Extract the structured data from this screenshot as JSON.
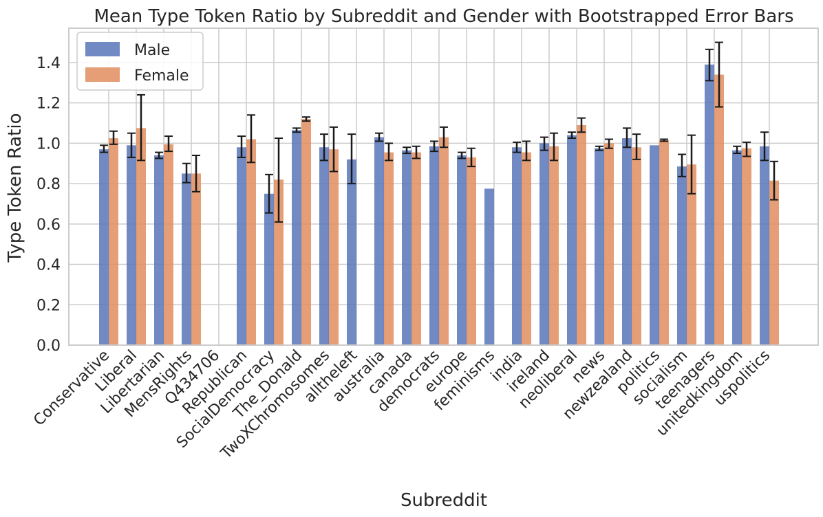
{
  "chart_data": {
    "type": "bar",
    "title": "Mean Type Token Ratio by Subreddit and Gender with Bootstrapped Error Bars",
    "xlabel": "Subreddit",
    "ylabel": "Type Token Ratio",
    "ylim": [
      0,
      1.57
    ],
    "yticks": [
      0.0,
      0.2,
      0.4,
      0.6,
      0.8,
      1.0,
      1.2,
      1.4
    ],
    "ytick_labels": [
      "0.0",
      "0.2",
      "0.4",
      "0.6",
      "0.8",
      "1.0",
      "1.2",
      "1.4"
    ],
    "grid": true,
    "legend_position": "top-left",
    "categories": [
      "Conservative",
      "Liberal",
      "Libertarian",
      "MensRights",
      "Q434706",
      "Republican",
      "SocialDemocracy",
      "The_Donald",
      "TwoXChromosomes",
      "alltheleft",
      "australia",
      "canada",
      "democrats",
      "europe",
      "feminisms",
      "india",
      "ireland",
      "neoliberal",
      "news",
      "newzealand",
      "politics",
      "socialism",
      "teenagers",
      "unitedkingdom",
      "uspolitics"
    ],
    "series": [
      {
        "name": "Male",
        "color": "#5875b8",
        "values": [
          0.97,
          0.99,
          0.94,
          0.85,
          null,
          0.98,
          0.75,
          1.065,
          0.98,
          0.92,
          1.03,
          0.965,
          0.985,
          0.94,
          0.775,
          0.98,
          1.0,
          1.04,
          0.975,
          1.025,
          0.99,
          0.885,
          1.39,
          0.965,
          0.985
        ],
        "error_low": [
          0.955,
          0.93,
          0.925,
          0.805,
          null,
          0.93,
          0.655,
          1.055,
          0.915,
          0.8,
          1.01,
          0.95,
          0.96,
          0.925,
          null,
          0.955,
          0.965,
          1.025,
          0.965,
          0.98,
          null,
          0.835,
          1.31,
          0.95,
          0.915
        ],
        "error_high": [
          0.99,
          1.05,
          0.955,
          0.9,
          null,
          1.035,
          0.845,
          1.075,
          1.045,
          1.045,
          1.05,
          0.98,
          1.01,
          0.955,
          null,
          1.005,
          1.03,
          1.055,
          0.985,
          1.075,
          null,
          0.945,
          1.465,
          0.985,
          1.055
        ]
      },
      {
        "name": "Female",
        "color": "#e08d5e",
        "values": [
          1.025,
          1.075,
          0.995,
          0.85,
          null,
          1.02,
          0.82,
          1.12,
          0.97,
          null,
          0.955,
          0.955,
          1.03,
          0.93,
          null,
          0.955,
          0.985,
          1.09,
          1.0,
          0.98,
          1.015,
          0.895,
          1.34,
          0.975,
          0.815
        ],
        "error_low": [
          0.995,
          0.915,
          0.96,
          0.76,
          null,
          0.905,
          0.61,
          1.11,
          0.86,
          null,
          0.915,
          0.925,
          0.98,
          0.885,
          null,
          0.915,
          0.915,
          1.055,
          0.975,
          0.92,
          1.01,
          0.75,
          1.18,
          0.935,
          0.72
        ],
        "error_high": [
          1.06,
          1.24,
          1.035,
          0.94,
          null,
          1.14,
          1.025,
          1.13,
          1.08,
          null,
          1.0,
          0.985,
          1.08,
          0.975,
          null,
          1.01,
          1.05,
          1.125,
          1.02,
          1.045,
          1.02,
          1.04,
          1.5,
          1.005,
          0.91
        ]
      }
    ]
  }
}
